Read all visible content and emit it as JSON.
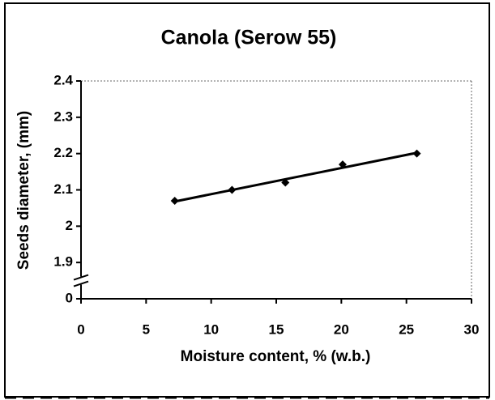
{
  "chart_data": {
    "type": "scatter",
    "title": "Canola (Serow 55)",
    "x_label": "Moisture content, % (w.b.)",
    "y_label": "Seeds diameter, (mm)",
    "x": [
      7.2,
      11.6,
      15.7,
      20.1,
      25.8
    ],
    "values": [
      2.07,
      2.1,
      2.12,
      2.17,
      2.2
    ],
    "color": "#000000",
    "trendline": true,
    "y_break": true,
    "xlim": [
      0,
      30
    ],
    "xticks": [
      0,
      5,
      10,
      15,
      20,
      25,
      30
    ],
    "ylim": [
      0,
      2.4
    ],
    "yticks": [
      0,
      1.9,
      2,
      2.1,
      2.2,
      2.3,
      2.4
    ]
  }
}
